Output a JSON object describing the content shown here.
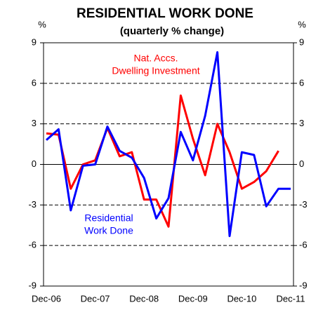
{
  "chart_data": {
    "type": "line",
    "title": "RESIDENTIAL WORK DONE",
    "subtitle": "(quarterly % change)",
    "y_label": "%",
    "y2_label": "%",
    "categories": [
      "Dec-06",
      null,
      null,
      null,
      "Dec-07",
      null,
      null,
      null,
      "Dec-08",
      null,
      null,
      null,
      "Dec-09",
      null,
      null,
      null,
      "Dec-10",
      null,
      null,
      null,
      "Dec-11"
    ],
    "series": [
      {
        "name_lines": [
          "Nat. Accs.",
          "Dwelling Investment"
        ],
        "color": "#ff0000",
        "values": [
          2.3,
          2.2,
          -1.8,
          0.0,
          0.3,
          2.7,
          0.6,
          0.9,
          -2.6,
          -2.6,
          -4.6,
          5.1,
          1.9,
          -0.8,
          3.0,
          0.9,
          -1.8,
          -1.3,
          -0.5,
          1.0,
          null
        ]
      },
      {
        "name_lines": [
          "Residential",
          "Work Done"
        ],
        "color": "#0000ff",
        "values": [
          1.8,
          2.6,
          -3.4,
          -0.1,
          0.0,
          2.8,
          1.0,
          0.5,
          -1.0,
          -4.0,
          -2.5,
          2.4,
          0.3,
          3.6,
          8.3,
          -5.3,
          0.9,
          0.7,
          -3.1,
          -1.8,
          -1.8
        ]
      }
    ],
    "ylim": [
      -9,
      9
    ],
    "yticks": [
      9,
      6,
      3,
      0,
      -3,
      -6,
      -9
    ],
    "y2lim": [
      -9,
      9
    ],
    "y2ticks": [
      9,
      6,
      3,
      0,
      -3,
      -6,
      -9
    ],
    "grid": true
  }
}
